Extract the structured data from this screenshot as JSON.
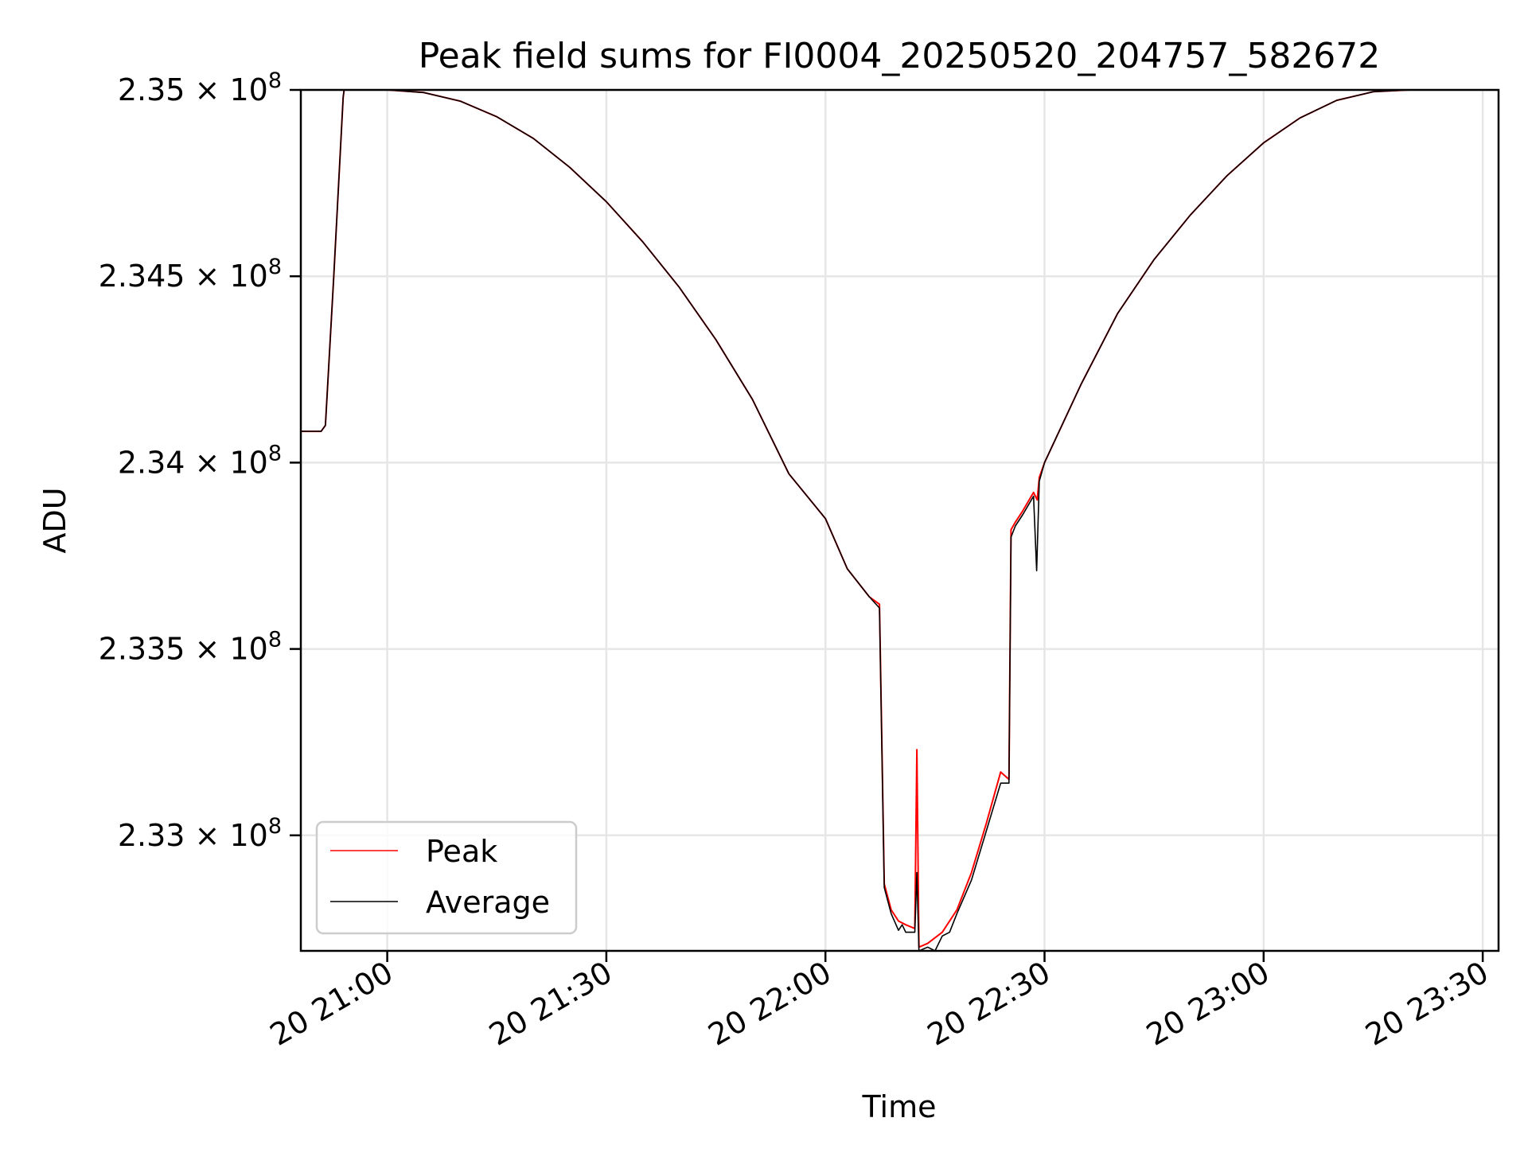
{
  "chart_data": {
    "type": "line",
    "title": "Peak field sums for FI0004_20250520_204757_582672",
    "xlabel": "Time",
    "ylabel": "ADU",
    "xlim": [
      "2025-05-20 20:48:10",
      "2025-05-20 23:32:10"
    ],
    "ylim": [
      232690000,
      235000000
    ],
    "x_ticks": [
      "2025-05-20 21:00",
      "2025-05-20 21:30",
      "2025-05-20 22:00",
      "2025-05-20 22:30",
      "2025-05-20 23:00",
      "2025-05-20 23:30"
    ],
    "x_tick_labels": [
      "20 21:00",
      "20 21:30",
      "20 22:00",
      "20 22:30",
      "20 23:00",
      "20 23:30"
    ],
    "y_ticks": [
      233000000,
      233500000,
      234000000,
      234500000,
      235000000
    ],
    "y_tick_labels": [
      {
        "mantissa": "2.33",
        "exponent": "8"
      },
      {
        "mantissa": "2.335",
        "exponent": "8"
      },
      {
        "mantissa": "2.34",
        "exponent": "8"
      },
      {
        "mantissa": "2.345",
        "exponent": "8"
      },
      {
        "mantissa": "2.35",
        "exponent": "8"
      }
    ],
    "tick_base_text": "× 10",
    "grid": true,
    "legend_position": "lower-left",
    "series": [
      {
        "name": "Peak",
        "color": "#ff0000",
        "points": [
          [
            "2025-05-20 20:48:10",
            234084000
          ],
          [
            "2025-05-20 20:50:57",
            234084000
          ],
          [
            "2025-05-20 20:51:32",
            234100000
          ],
          [
            "2025-05-20 20:52:41",
            234500000
          ],
          [
            "2025-05-20 20:53:58",
            234980000
          ],
          [
            "2025-05-20 20:54:06",
            235000000
          ],
          [
            "2025-05-20 21:00:00",
            235000000
          ],
          [
            "2025-05-20 21:05:00",
            234993000
          ],
          [
            "2025-05-20 21:10:00",
            234970000
          ],
          [
            "2025-05-20 21:15:00",
            234928000
          ],
          [
            "2025-05-20 21:20:00",
            234870000
          ],
          [
            "2025-05-20 21:25:00",
            234792000
          ],
          [
            "2025-05-20 21:30:00",
            234700000
          ],
          [
            "2025-05-20 21:35:00",
            234592000
          ],
          [
            "2025-05-20 21:40:00",
            234470000
          ],
          [
            "2025-05-20 21:45:00",
            234330000
          ],
          [
            "2025-05-20 21:50:00",
            234170000
          ],
          [
            "2025-05-20 21:55:00",
            233970000
          ],
          [
            "2025-05-20 22:00:00",
            233850000
          ],
          [
            "2025-05-20 22:03:00",
            233715000
          ],
          [
            "2025-05-20 22:06:00",
            233640000
          ],
          [
            "2025-05-20 22:07:24",
            233620000
          ],
          [
            "2025-05-20 22:08:03",
            232870000
          ],
          [
            "2025-05-20 22:09:00",
            232800000
          ],
          [
            "2025-05-20 22:10:00",
            232770000
          ],
          [
            "2025-05-20 22:11:00",
            232760000
          ],
          [
            "2025-05-20 22:12:14",
            232750000
          ],
          [
            "2025-05-20 22:12:31",
            233230000
          ],
          [
            "2025-05-20 22:12:48",
            232700000
          ],
          [
            "2025-05-20 22:14:00",
            232710000
          ],
          [
            "2025-05-20 22:16:00",
            232740000
          ],
          [
            "2025-05-20 22:18:00",
            232800000
          ],
          [
            "2025-05-20 22:20:00",
            232900000
          ],
          [
            "2025-05-20 22:22:00",
            233030000
          ],
          [
            "2025-05-20 22:24:00",
            233170000
          ],
          [
            "2025-05-20 22:25:08",
            233150000
          ],
          [
            "2025-05-20 22:25:25",
            233820000
          ],
          [
            "2025-05-20 22:26:00",
            233840000
          ],
          [
            "2025-05-20 22:27:00",
            233870000
          ],
          [
            "2025-05-20 22:28:30",
            233920000
          ],
          [
            "2025-05-20 22:29:00",
            233900000
          ],
          [
            "2025-05-20 22:29:17",
            233960000
          ],
          [
            "2025-05-20 22:30:00",
            234000000
          ],
          [
            "2025-05-20 22:35:00",
            234210000
          ],
          [
            "2025-05-20 22:40:00",
            234400000
          ],
          [
            "2025-05-20 22:45:00",
            234545000
          ],
          [
            "2025-05-20 22:50:00",
            234665000
          ],
          [
            "2025-05-20 22:55:00",
            234770000
          ],
          [
            "2025-05-20 23:00:00",
            234858000
          ],
          [
            "2025-05-20 23:05:00",
            234925000
          ],
          [
            "2025-05-20 23:10:00",
            234972000
          ],
          [
            "2025-05-20 23:15:00",
            234995000
          ],
          [
            "2025-05-20 23:20:00",
            235000000
          ],
          [
            "2025-05-20 23:32:10",
            235000000
          ]
        ]
      },
      {
        "name": "Average",
        "color": "#000000",
        "points": [
          [
            "2025-05-20 20:48:10",
            234084000
          ],
          [
            "2025-05-20 20:50:57",
            234084000
          ],
          [
            "2025-05-20 20:51:32",
            234100000
          ],
          [
            "2025-05-20 20:52:41",
            234500000
          ],
          [
            "2025-05-20 20:53:58",
            234980000
          ],
          [
            "2025-05-20 20:54:06",
            235000000
          ],
          [
            "2025-05-20 21:00:00",
            235000000
          ],
          [
            "2025-05-20 21:05:00",
            234993000
          ],
          [
            "2025-05-20 21:10:00",
            234970000
          ],
          [
            "2025-05-20 21:15:00",
            234928000
          ],
          [
            "2025-05-20 21:20:00",
            234870000
          ],
          [
            "2025-05-20 21:25:00",
            234792000
          ],
          [
            "2025-05-20 21:30:00",
            234700000
          ],
          [
            "2025-05-20 21:35:00",
            234592000
          ],
          [
            "2025-05-20 21:40:00",
            234470000
          ],
          [
            "2025-05-20 21:45:00",
            234330000
          ],
          [
            "2025-05-20 21:50:00",
            234170000
          ],
          [
            "2025-05-20 21:55:00",
            233970000
          ],
          [
            "2025-05-20 22:00:00",
            233850000
          ],
          [
            "2025-05-20 22:03:00",
            233715000
          ],
          [
            "2025-05-20 22:06:00",
            233640000
          ],
          [
            "2025-05-20 22:07:24",
            233610000
          ],
          [
            "2025-05-20 22:08:03",
            232860000
          ],
          [
            "2025-05-20 22:09:00",
            232790000
          ],
          [
            "2025-05-20 22:10:00",
            232745000
          ],
          [
            "2025-05-20 22:10:30",
            232760000
          ],
          [
            "2025-05-20 22:11:00",
            232740000
          ],
          [
            "2025-05-20 22:12:14",
            232740000
          ],
          [
            "2025-05-20 22:12:31",
            232900000
          ],
          [
            "2025-05-20 22:12:48",
            232690000
          ],
          [
            "2025-05-20 22:14:00",
            232700000
          ],
          [
            "2025-05-20 22:15:00",
            232690000
          ],
          [
            "2025-05-20 22:16:00",
            232730000
          ],
          [
            "2025-05-20 22:17:00",
            232740000
          ],
          [
            "2025-05-20 22:18:00",
            232790000
          ],
          [
            "2025-05-20 22:20:00",
            232880000
          ],
          [
            "2025-05-20 22:22:00",
            233010000
          ],
          [
            "2025-05-20 22:24:00",
            233140000
          ],
          [
            "2025-05-20 22:25:08",
            233140000
          ],
          [
            "2025-05-20 22:25:25",
            233800000
          ],
          [
            "2025-05-20 22:26:00",
            233830000
          ],
          [
            "2025-05-20 22:27:00",
            233860000
          ],
          [
            "2025-05-20 22:28:30",
            233910000
          ],
          [
            "2025-05-20 22:28:55",
            233710000
          ],
          [
            "2025-05-20 22:29:17",
            233950000
          ],
          [
            "2025-05-20 22:30:00",
            234000000
          ],
          [
            "2025-05-20 22:35:00",
            234210000
          ],
          [
            "2025-05-20 22:40:00",
            234400000
          ],
          [
            "2025-05-20 22:45:00",
            234545000
          ],
          [
            "2025-05-20 22:50:00",
            234665000
          ],
          [
            "2025-05-20 22:55:00",
            234770000
          ],
          [
            "2025-05-20 23:00:00",
            234858000
          ],
          [
            "2025-05-20 23:05:00",
            234925000
          ],
          [
            "2025-05-20 23:10:00",
            234972000
          ],
          [
            "2025-05-20 23:15:00",
            234995000
          ],
          [
            "2025-05-20 23:20:00",
            235000000
          ],
          [
            "2025-05-20 23:32:10",
            235000000
          ]
        ]
      }
    ]
  }
}
